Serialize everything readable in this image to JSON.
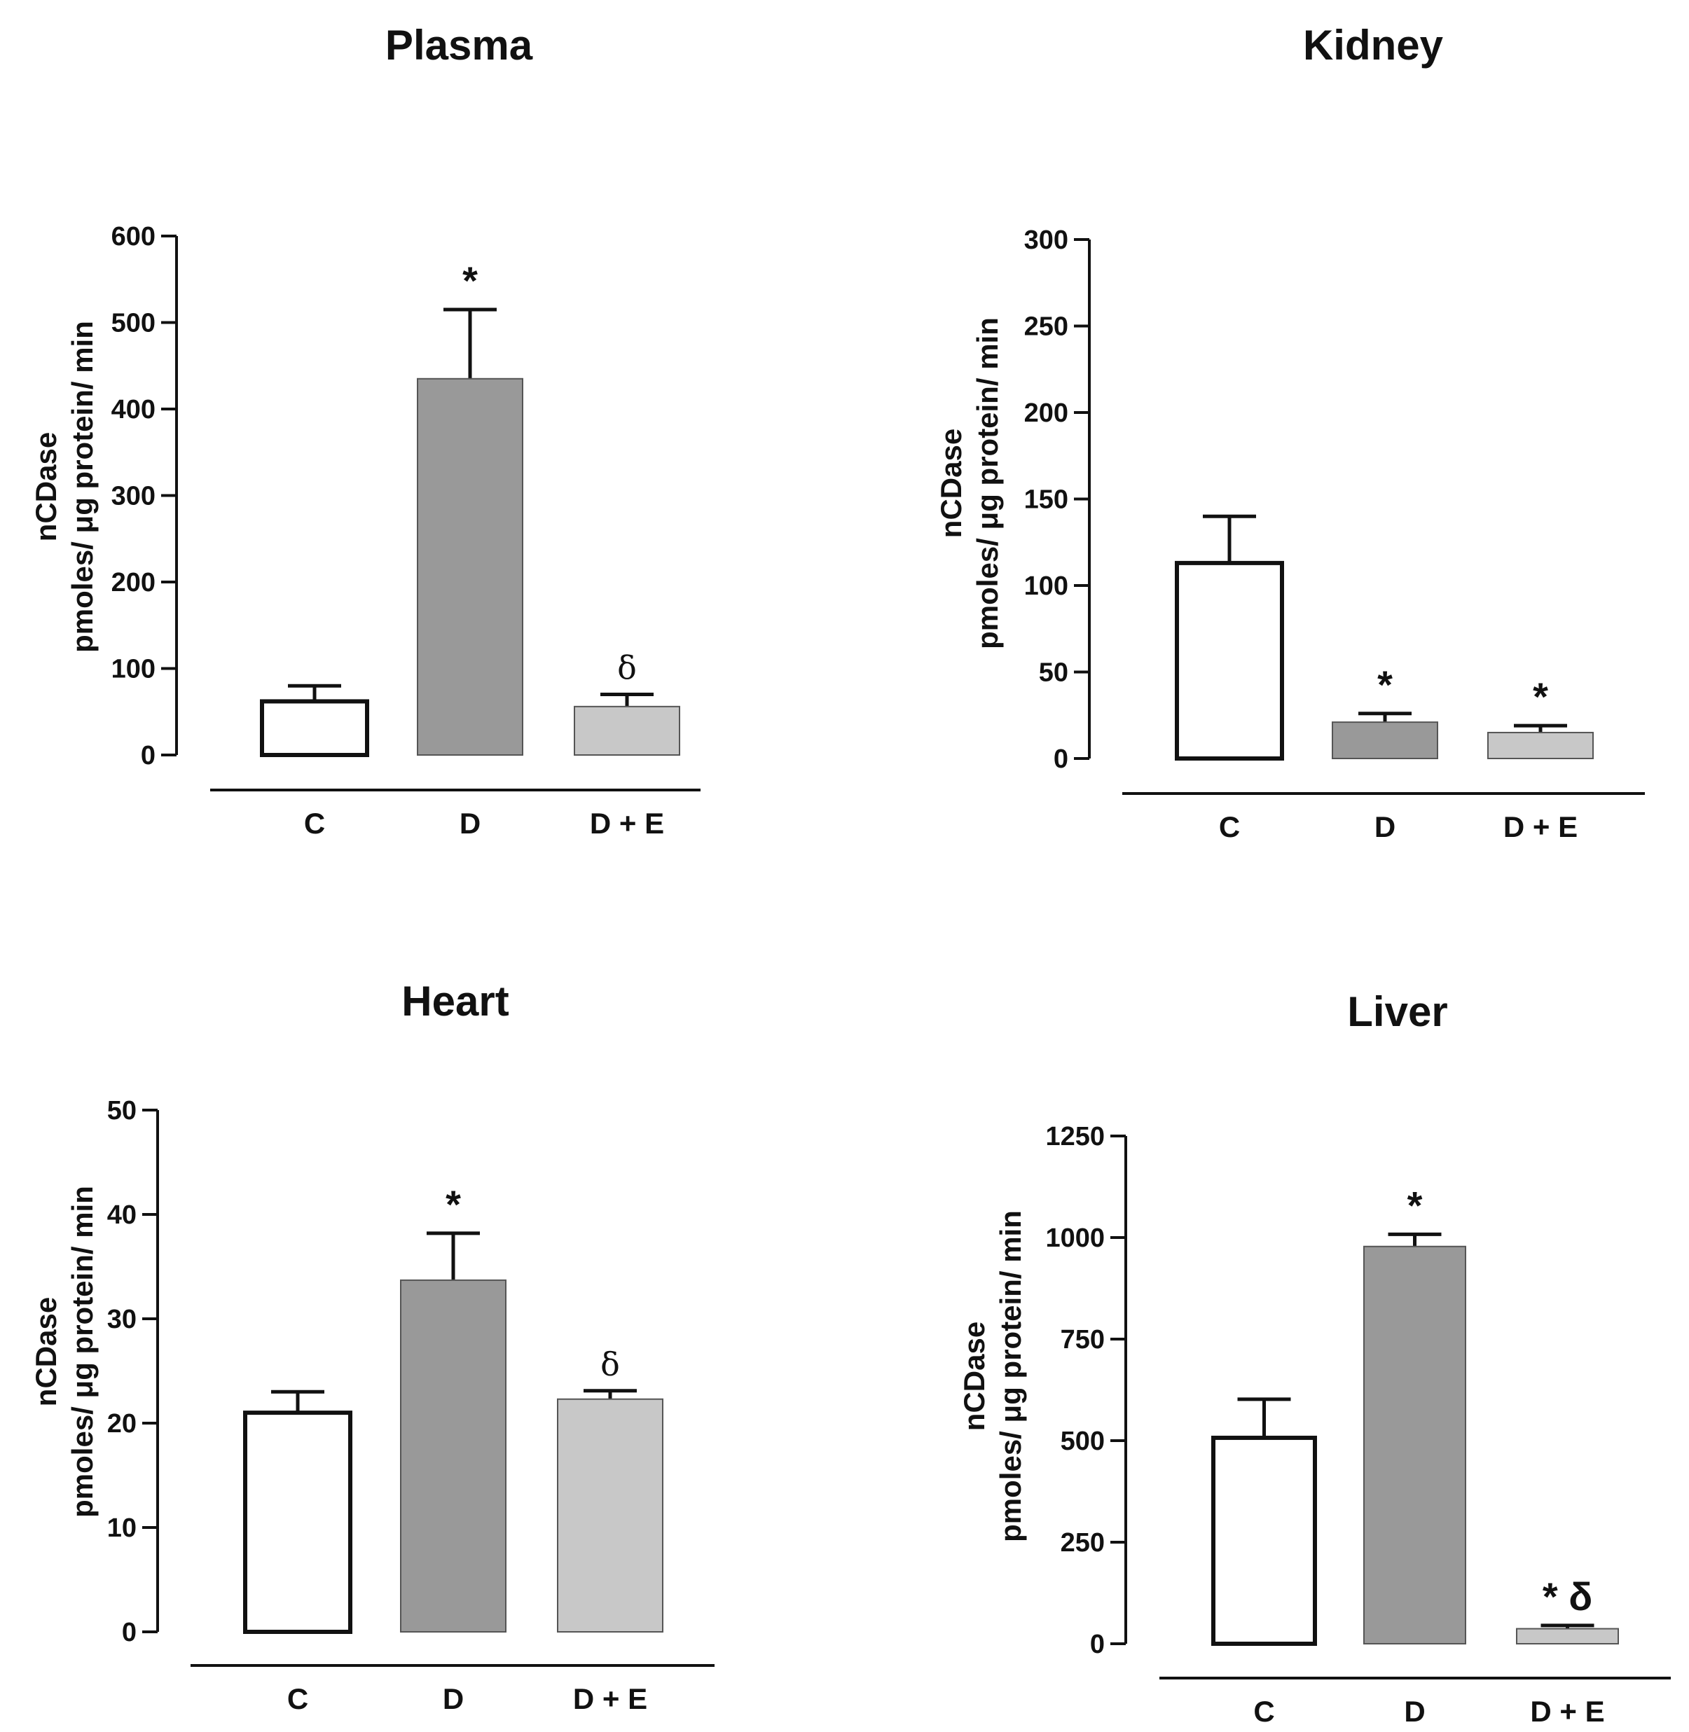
{
  "chart_data": [
    {
      "type": "bar",
      "title": "Plasma",
      "ylabel_line1": "nCDase",
      "ylabel_line2": "pmoles/ μg protein/ min",
      "categories": [
        "C",
        "D",
        "D + E"
      ],
      "values": [
        62,
        435,
        56
      ],
      "errors": [
        18,
        80,
        14
      ],
      "annotations": [
        "",
        "*",
        "δ"
      ],
      "ylim": [
        0,
        600
      ],
      "yticks": [
        0,
        100,
        200,
        300,
        400,
        500,
        600
      ],
      "fills": [
        "#ffffff",
        "#999999",
        "#c8c8c8"
      ]
    },
    {
      "type": "bar",
      "title": "Kidney",
      "ylabel_line1": "nCDase",
      "ylabel_line2": "pmoles/ μg protein/ min",
      "categories": [
        "C",
        "D",
        "D + E"
      ],
      "values": [
        113,
        21,
        15
      ],
      "errors": [
        27,
        5,
        4
      ],
      "annotations": [
        "",
        "*",
        "*"
      ],
      "ylim": [
        0,
        300
      ],
      "yticks": [
        0,
        50,
        100,
        150,
        200,
        250,
        300
      ],
      "fills": [
        "#ffffff",
        "#999999",
        "#c8c8c8"
      ]
    },
    {
      "type": "bar",
      "title": "Heart",
      "ylabel_line1": "nCDase",
      "ylabel_line2": "pmoles/ μg protein/ min",
      "categories": [
        "C",
        "D",
        "D + E"
      ],
      "values": [
        21,
        33.7,
        22.3
      ],
      "errors": [
        2,
        4.5,
        0.8
      ],
      "annotations": [
        "",
        "*",
        "δ"
      ],
      "ylim": [
        0,
        50
      ],
      "yticks": [
        0,
        10,
        20,
        30,
        40,
        50
      ],
      "fills": [
        "#ffffff",
        "#999999",
        "#c8c8c8"
      ]
    },
    {
      "type": "bar",
      "title": "Liver",
      "ylabel_line1": "nCDase",
      "ylabel_line2": "pmoles/ μg protein/ min",
      "categories": [
        "C",
        "D",
        "D + E"
      ],
      "values": [
        507,
        978,
        37
      ],
      "errors": [
        95,
        30,
        8
      ],
      "annotations": [
        "",
        "*",
        "* δ"
      ],
      "ylim": [
        0,
        1250
      ],
      "yticks": [
        0,
        250,
        500,
        750,
        1000,
        1250
      ],
      "fills": [
        "#ffffff",
        "#999999",
        "#c8c8c8"
      ]
    }
  ]
}
